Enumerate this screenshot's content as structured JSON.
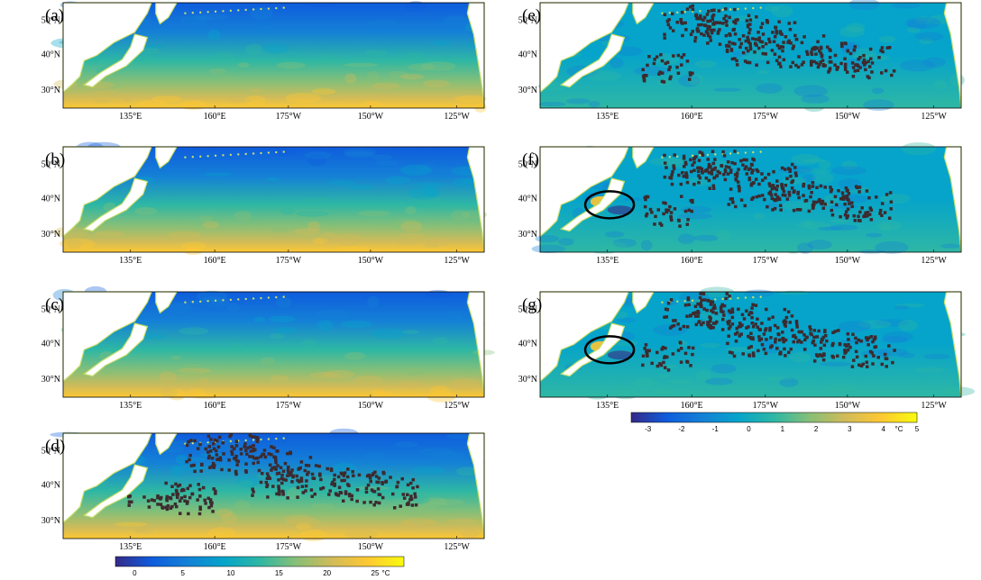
{
  "chart_data": [
    {
      "type": "heatmap",
      "panel_label": "(a)",
      "title": "",
      "xlabel": "",
      "ylabel": "",
      "x_ticks": [
        "135°E",
        "160°E",
        "175°W",
        "150°W",
        "125°W"
      ],
      "y_ticks": [
        "50°N",
        "40°N",
        "30°N"
      ],
      "colormap": "parula",
      "missing_data": false,
      "circle_annotation": false
    },
    {
      "type": "heatmap",
      "panel_label": "(b)",
      "title": "",
      "xlabel": "",
      "ylabel": "",
      "x_ticks": [
        "135°E",
        "160°E",
        "175°W",
        "150°W",
        "125°W"
      ],
      "y_ticks": [
        "50°N",
        "40°N",
        "30°N"
      ],
      "colormap": "parula",
      "missing_data": false,
      "circle_annotation": false
    },
    {
      "type": "heatmap",
      "panel_label": "(c)",
      "title": "",
      "xlabel": "",
      "ylabel": "",
      "x_ticks": [
        "135°E",
        "160°E",
        "175°W",
        "150°W",
        "125°W"
      ],
      "y_ticks": [
        "50°N",
        "40°N",
        "30°N"
      ],
      "colormap": "parula",
      "missing_data": false,
      "circle_annotation": false
    },
    {
      "type": "heatmap",
      "panel_label": "(d)",
      "title": "",
      "xlabel": "",
      "ylabel": "",
      "x_ticks": [
        "135°E",
        "160°E",
        "175°W",
        "150°W",
        "125°W"
      ],
      "y_ticks": [
        "50°N",
        "40°N",
        "30°N"
      ],
      "colormap": "parula",
      "missing_data": true,
      "circle_annotation": false,
      "colorbar": {
        "ticks": [
          "0",
          "5",
          "10",
          "15",
          "20",
          "25"
        ],
        "unit": "°C",
        "range": [
          -2,
          28
        ]
      }
    },
    {
      "type": "heatmap",
      "panel_label": "(e)",
      "title": "",
      "xlabel": "",
      "ylabel": "",
      "x_ticks": [
        "135°E",
        "160°E",
        "175°W",
        "150°W",
        "125°W"
      ],
      "y_ticks": [
        "50°N",
        "40°N",
        "30°N"
      ],
      "colormap": "parula",
      "missing_data": true,
      "circle_annotation": false
    },
    {
      "type": "heatmap",
      "panel_label": "(f)",
      "title": "",
      "xlabel": "",
      "ylabel": "",
      "x_ticks": [
        "135°E",
        "160°E",
        "175°W",
        "150°W",
        "125°W"
      ],
      "y_ticks": [
        "50°N",
        "40°N",
        "30°N"
      ],
      "colormap": "parula",
      "missing_data": true,
      "circle_annotation": true
    },
    {
      "type": "heatmap",
      "panel_label": "(g)",
      "title": "",
      "xlabel": "",
      "ylabel": "",
      "x_ticks": [
        "135°E",
        "160°E",
        "175°W",
        "150°W",
        "125°W"
      ],
      "y_ticks": [
        "50°N",
        "40°N",
        "30°N"
      ],
      "colormap": "parula",
      "missing_data": true,
      "circle_annotation": true,
      "colorbar": {
        "ticks": [
          "-3",
          "-2",
          "-1",
          "0",
          "1",
          "2",
          "3",
          "4",
          "5"
        ],
        "unit": "°C",
        "range": [
          -3.5,
          5
        ]
      }
    }
  ],
  "colors": {
    "missing": "#3d2a2e",
    "land": "#ffffff",
    "coast": "#c8de6a",
    "circle": "#000000",
    "parula": [
      "#352a87",
      "#0f5cdd",
      "#1481d6",
      "#06a4ca",
      "#2eb7a4",
      "#87bf77",
      "#d1bb59",
      "#fec832",
      "#f9fb0e"
    ]
  }
}
